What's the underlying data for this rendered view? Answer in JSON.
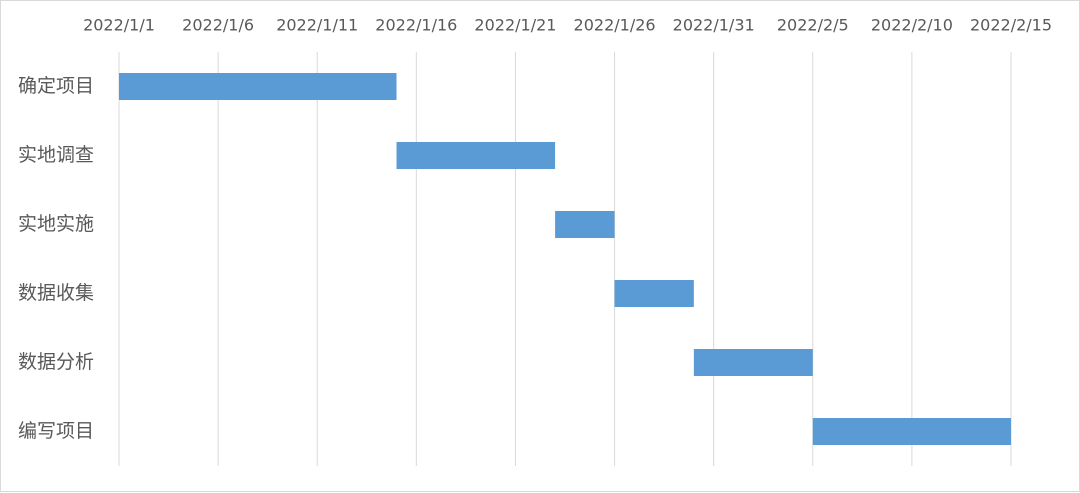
{
  "chart_data": {
    "type": "gantt",
    "categories": [
      "确定项目",
      "实地调查",
      "实地实施",
      "数据收集",
      "数据分析",
      "编写项目"
    ],
    "start": [
      "2022/1/1",
      "2022/1/15",
      "2022/1/23",
      "2022/1/26",
      "2022/1/30",
      "2022/2/5"
    ],
    "values": [
      14,
      8,
      3,
      4,
      6,
      10
    ],
    "color": "#5b9bd5",
    "xlim": [
      "2022/1/1",
      "2022/2/15"
    ],
    "xticks": [
      "2022/1/1",
      "2022/1/6",
      "2022/1/11",
      "2022/1/16",
      "2022/1/21",
      "2022/1/26",
      "2022/1/31",
      "2022/2/5",
      "2022/2/10",
      "2022/2/15"
    ],
    "grid": true
  }
}
